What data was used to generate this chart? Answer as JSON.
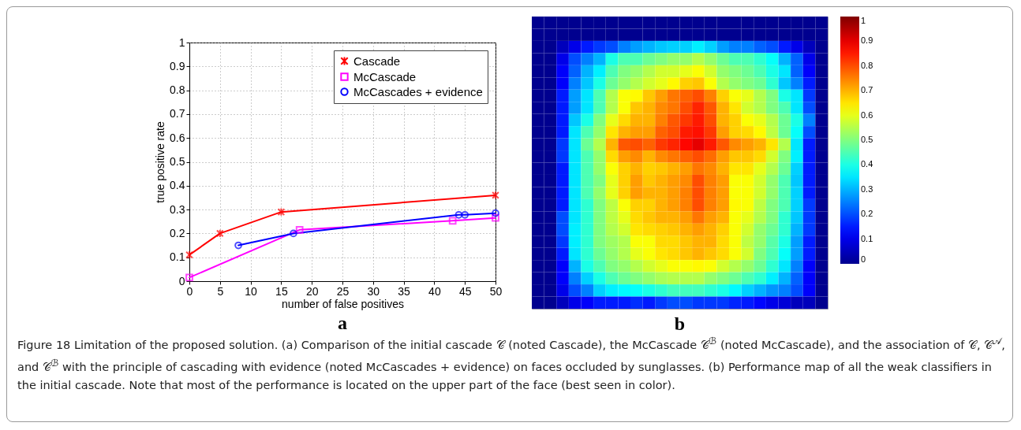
{
  "chart_data": [
    {
      "type": "line",
      "xlabel": "number of false positives",
      "ylabel": "true positive rate",
      "annotations": [
        "a"
      ],
      "xlim": [
        0,
        50
      ],
      "xticks": [
        0,
        5,
        10,
        15,
        20,
        25,
        30,
        35,
        40,
        45,
        50
      ],
      "ylim": [
        0,
        1
      ],
      "yticks": [
        0,
        0.1,
        0.2,
        0.3,
        0.4,
        0.5,
        0.6,
        0.7,
        0.8,
        0.9,
        1
      ],
      "grid": true,
      "legend": "top right",
      "series": [
        {
          "name": "Cascade",
          "color": "#ff0000",
          "marker": "cross",
          "x": [
            0,
            5,
            15,
            50
          ],
          "values": [
            0.11,
            0.2,
            0.29,
            0.36
          ]
        },
        {
          "name": "McCascade",
          "color": "#ff00ff",
          "marker": "square",
          "x": [
            0,
            18,
            43,
            50
          ],
          "values": [
            0.015,
            0.215,
            0.253,
            0.265
          ]
        },
        {
          "name": "McCascades + evidence",
          "color": "#0000ff",
          "marker": "circle",
          "x": [
            8,
            17,
            44,
            45,
            50
          ],
          "values": [
            0.15,
            0.2,
            0.278,
            0.278,
            0.285
          ]
        }
      ]
    },
    {
      "type": "heatmap",
      "annotations": [
        "b"
      ],
      "clim": [
        0,
        1
      ],
      "cticks": [
        0,
        0.1,
        0.2,
        0.3,
        0.4,
        0.5,
        0.6,
        0.7,
        0.8,
        0.9,
        1
      ],
      "categories": [
        null,
        null,
        null,
        null,
        null,
        null,
        null,
        null,
        null,
        null,
        null,
        null,
        null,
        null,
        null,
        null,
        null,
        null,
        null,
        null,
        null,
        null,
        null,
        null
      ],
      "y_categories": [
        null,
        null,
        null,
        null,
        null,
        null,
        null,
        null,
        null,
        null,
        null,
        null,
        null,
        null,
        null,
        null,
        null,
        null,
        null,
        null,
        null,
        null,
        null,
        null
      ],
      "cells": [
        [
          0,
          0,
          0,
          0,
          0,
          0,
          0,
          0,
          0,
          0,
          0,
          0,
          0,
          0,
          0,
          0,
          0,
          0,
          0,
          0,
          0,
          0,
          0,
          0
        ],
        [
          0,
          0,
          0,
          0,
          0,
          0,
          0,
          0,
          0,
          0,
          0,
          0,
          0,
          0,
          0,
          0,
          0,
          0,
          0,
          0,
          0,
          0,
          0,
          0
        ],
        [
          0,
          0,
          0.05,
          0.1,
          0.15,
          0.18,
          0.2,
          0.25,
          0.28,
          0.3,
          0.32,
          0.33,
          0.33,
          0.36,
          0.33,
          0.28,
          0.25,
          0.25,
          0.22,
          0.2,
          0.15,
          0.1,
          0.05,
          0
        ],
        [
          0,
          0,
          0.1,
          0.2,
          0.25,
          0.3,
          0.4,
          0.45,
          0.45,
          0.48,
          0.5,
          0.52,
          0.52,
          0.55,
          0.52,
          0.48,
          0.45,
          0.45,
          0.42,
          0.38,
          0.3,
          0.22,
          0.1,
          0
        ],
        [
          0,
          0,
          0.12,
          0.22,
          0.3,
          0.36,
          0.45,
          0.5,
          0.52,
          0.55,
          0.58,
          0.58,
          0.6,
          0.62,
          0.58,
          0.52,
          0.5,
          0.48,
          0.45,
          0.4,
          0.35,
          0.22,
          0.12,
          0
        ],
        [
          0,
          0,
          0.12,
          0.25,
          0.32,
          0.4,
          0.48,
          0.52,
          0.55,
          0.58,
          0.6,
          0.63,
          0.67,
          0.68,
          0.62,
          0.55,
          0.52,
          0.5,
          0.48,
          0.42,
          0.32,
          0.25,
          0.15,
          0
        ],
        [
          0,
          0,
          0.15,
          0.28,
          0.35,
          0.45,
          0.55,
          0.62,
          0.63,
          0.68,
          0.72,
          0.76,
          0.78,
          0.8,
          0.75,
          0.67,
          0.62,
          0.6,
          0.55,
          0.5,
          0.4,
          0.35,
          0.18,
          0
        ],
        [
          0,
          0,
          0.15,
          0.28,
          0.35,
          0.45,
          0.55,
          0.62,
          0.68,
          0.7,
          0.74,
          0.76,
          0.8,
          0.84,
          0.79,
          0.7,
          0.65,
          0.58,
          0.55,
          0.5,
          0.45,
          0.35,
          0.2,
          0
        ],
        [
          0,
          0,
          0.15,
          0.32,
          0.4,
          0.5,
          0.6,
          0.66,
          0.7,
          0.7,
          0.75,
          0.79,
          0.82,
          0.85,
          0.8,
          0.7,
          0.67,
          0.62,
          0.6,
          0.55,
          0.48,
          0.4,
          0.25,
          0
        ],
        [
          0,
          0,
          0.15,
          0.35,
          0.45,
          0.52,
          0.65,
          0.7,
          0.72,
          0.72,
          0.78,
          0.8,
          0.85,
          0.86,
          0.82,
          0.72,
          0.67,
          0.66,
          0.63,
          0.56,
          0.48,
          0.38,
          0.2,
          0
        ],
        [
          0,
          0,
          0.18,
          0.35,
          0.48,
          0.55,
          0.7,
          0.79,
          0.8,
          0.78,
          0.82,
          0.84,
          0.87,
          0.9,
          0.85,
          0.79,
          0.74,
          0.72,
          0.7,
          0.65,
          0.55,
          0.35,
          0.15,
          0
        ],
        [
          0,
          0,
          0.18,
          0.35,
          0.45,
          0.52,
          0.66,
          0.72,
          0.74,
          0.7,
          0.74,
          0.76,
          0.78,
          0.8,
          0.77,
          0.72,
          0.68,
          0.68,
          0.66,
          0.58,
          0.5,
          0.36,
          0.15,
          0
        ],
        [
          0,
          0,
          0.15,
          0.35,
          0.45,
          0.52,
          0.62,
          0.67,
          0.7,
          0.67,
          0.68,
          0.7,
          0.72,
          0.76,
          0.74,
          0.7,
          0.65,
          0.65,
          0.6,
          0.55,
          0.48,
          0.33,
          0.15,
          0
        ],
        [
          0,
          0,
          0.15,
          0.35,
          0.45,
          0.5,
          0.6,
          0.67,
          0.72,
          0.68,
          0.7,
          0.72,
          0.74,
          0.8,
          0.75,
          0.72,
          0.62,
          0.62,
          0.58,
          0.52,
          0.45,
          0.32,
          0.15,
          0
        ],
        [
          0,
          0,
          0.15,
          0.35,
          0.45,
          0.52,
          0.6,
          0.67,
          0.72,
          0.7,
          0.7,
          0.72,
          0.75,
          0.8,
          0.75,
          0.72,
          0.62,
          0.62,
          0.58,
          0.52,
          0.45,
          0.33,
          0.15,
          0
        ],
        [
          0,
          0,
          0.15,
          0.35,
          0.42,
          0.5,
          0.56,
          0.62,
          0.67,
          0.67,
          0.7,
          0.72,
          0.75,
          0.8,
          0.75,
          0.72,
          0.63,
          0.62,
          0.56,
          0.5,
          0.45,
          0.33,
          0.18,
          0
        ],
        [
          0,
          0,
          0.2,
          0.35,
          0.42,
          0.5,
          0.56,
          0.6,
          0.66,
          0.68,
          0.7,
          0.7,
          0.72,
          0.76,
          0.72,
          0.7,
          0.62,
          0.6,
          0.55,
          0.5,
          0.42,
          0.32,
          0.18,
          0
        ],
        [
          0,
          0,
          0.2,
          0.36,
          0.42,
          0.5,
          0.55,
          0.58,
          0.65,
          0.66,
          0.67,
          0.68,
          0.7,
          0.72,
          0.7,
          0.67,
          0.62,
          0.58,
          0.52,
          0.48,
          0.42,
          0.3,
          0.18,
          0
        ],
        [
          0,
          0,
          0.18,
          0.36,
          0.42,
          0.5,
          0.53,
          0.55,
          0.62,
          0.62,
          0.66,
          0.66,
          0.68,
          0.7,
          0.7,
          0.66,
          0.62,
          0.56,
          0.52,
          0.46,
          0.4,
          0.28,
          0.15,
          0
        ],
        [
          0,
          0,
          0.15,
          0.35,
          0.42,
          0.48,
          0.52,
          0.55,
          0.6,
          0.62,
          0.65,
          0.66,
          0.68,
          0.7,
          0.68,
          0.66,
          0.62,
          0.58,
          0.5,
          0.45,
          0.38,
          0.28,
          0.15,
          0
        ],
        [
          0,
          0,
          0.12,
          0.3,
          0.4,
          0.45,
          0.5,
          0.52,
          0.55,
          0.58,
          0.6,
          0.62,
          0.62,
          0.63,
          0.62,
          0.58,
          0.55,
          0.52,
          0.48,
          0.42,
          0.35,
          0.25,
          0.12,
          0
        ],
        [
          0,
          0,
          0.12,
          0.25,
          0.33,
          0.4,
          0.45,
          0.48,
          0.5,
          0.52,
          0.54,
          0.55,
          0.55,
          0.55,
          0.52,
          0.5,
          0.48,
          0.45,
          0.42,
          0.36,
          0.3,
          0.22,
          0.12,
          0
        ],
        [
          0,
          0,
          0.1,
          0.2,
          0.25,
          0.33,
          0.36,
          0.37,
          0.38,
          0.4,
          0.42,
          0.44,
          0.44,
          0.44,
          0.42,
          0.4,
          0.37,
          0.33,
          0.3,
          0.27,
          0.25,
          0.2,
          0.12,
          0
        ],
        [
          0,
          0,
          0.05,
          0.1,
          0.12,
          0.15,
          0.15,
          0.15,
          0.17,
          0.15,
          0.18,
          0.2,
          0.2,
          0.18,
          0.18,
          0.18,
          0.16,
          0.15,
          0.13,
          0.1,
          0.08,
          0.05,
          0.05,
          0
        ]
      ]
    },
    {
      "type": "other",
      "annotations": [
        "Figure 18 Limitation of the proposed solution. (a) Comparison of the initial cascade 𝒞 (noted Cascade), the McCascade 𝒞$^{ℬ}$ (noted McCascade), and the association of 𝒞, 𝒞$^{𝒜}$, and 𝒞$^{ℬ}$ with the principle of cascading with evidence (noted McCascades + evidence) on faces occluded by sunglasses. (b) Performance map of all the weak classifiers in the initial cascade. Note that most of the performance is located on the upper part of the face (best seen in color)."
      ]
    }
  ]
}
